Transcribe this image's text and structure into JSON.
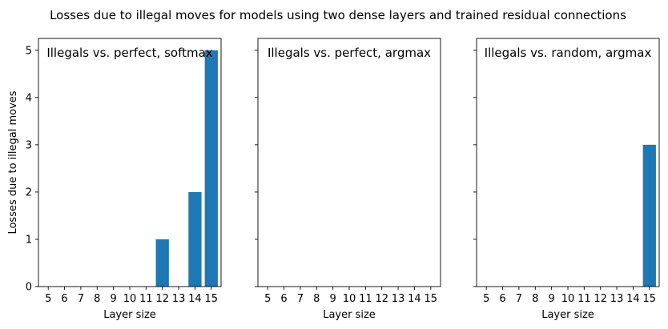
{
  "figure": {
    "suptitle": "Losses due to illegal moves for models using two dense layers and trained residual connections"
  },
  "style": {
    "bar_color": "#1f77b4",
    "axis_color": "#000000",
    "background": "#ffffff"
  },
  "chart_data": [
    {
      "type": "bar",
      "title": "Illegals vs. perfect, softmax",
      "xlabel": "Layer size",
      "ylabel": "Losses due to illegal moves",
      "categories": [
        "5",
        "6",
        "7",
        "8",
        "9",
        "10",
        "11",
        "12",
        "13",
        "14",
        "15"
      ],
      "values": [
        0,
        0,
        0,
        0,
        0,
        0,
        0,
        1,
        0,
        2,
        5
      ],
      "ylim": [
        0,
        5.25
      ],
      "yticks": [
        0,
        1,
        2,
        3,
        4,
        5
      ],
      "grid": false
    },
    {
      "type": "bar",
      "title": "Illegals vs. perfect, argmax",
      "xlabel": "Layer size",
      "ylabel": "",
      "categories": [
        "5",
        "6",
        "7",
        "8",
        "9",
        "10",
        "11",
        "12",
        "13",
        "14",
        "15"
      ],
      "values": [
        0,
        0,
        0,
        0,
        0,
        0,
        0,
        0,
        0,
        0,
        0
      ],
      "ylim": [
        0,
        5.25
      ],
      "yticks": [
        0,
        1,
        2,
        3,
        4,
        5
      ],
      "grid": false
    },
    {
      "type": "bar",
      "title": "Illegals vs. random, argmax",
      "xlabel": "Layer size",
      "ylabel": "",
      "categories": [
        "5",
        "6",
        "7",
        "8",
        "9",
        "10",
        "11",
        "12",
        "13",
        "14",
        "15"
      ],
      "values": [
        0,
        0,
        0,
        0,
        0,
        0,
        0,
        0,
        0,
        0,
        3
      ],
      "ylim": [
        0,
        5.25
      ],
      "yticks": [
        0,
        1,
        2,
        3,
        4,
        5
      ],
      "grid": false
    }
  ]
}
